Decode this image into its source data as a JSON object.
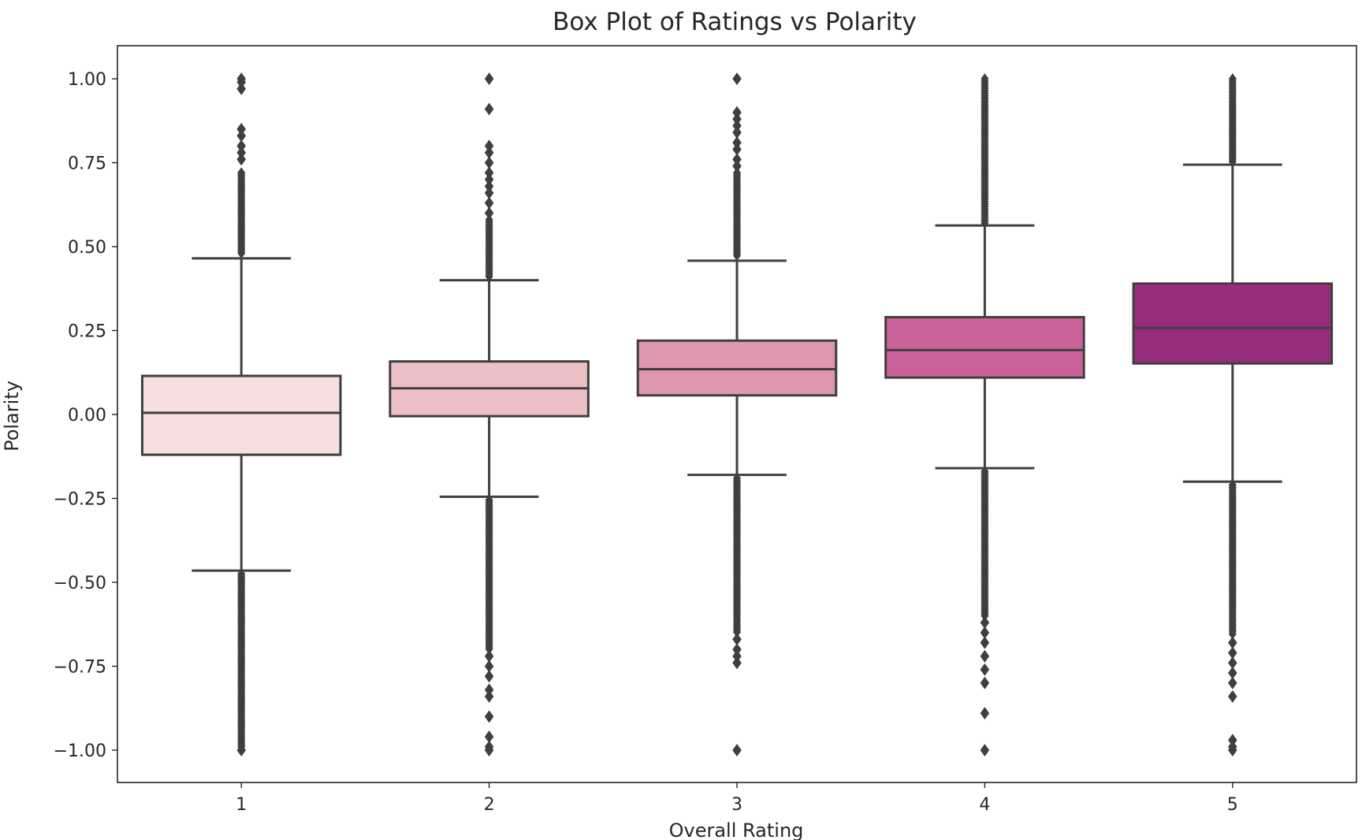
{
  "chart_data": {
    "type": "box",
    "title": "Box Plot of Ratings vs Polarity",
    "xlabel": "Overall Rating",
    "ylabel": "Polarity",
    "ylim": [
      -1.1,
      1.1
    ],
    "yticks": [
      1.0,
      0.75,
      0.5,
      0.25,
      0.0,
      -0.25,
      -0.5,
      -0.75,
      -1.0
    ],
    "ytick_labels": [
      "1.00",
      "0.75",
      "0.50",
      "0.25",
      "0.00",
      "−0.25",
      "−0.50",
      "−0.75",
      "−1.00"
    ],
    "categories": [
      "1",
      "2",
      "3",
      "4",
      "5"
    ],
    "grid": false,
    "legend": "none",
    "edge_color": "#3f3f3f",
    "boxes": [
      {
        "category": "1",
        "color": "#f7dfdf",
        "whisker_low": -0.465,
        "q1": -0.12,
        "median": 0.005,
        "q3": 0.115,
        "whisker_high": 0.465,
        "outliers_high_dense": [
          0.48,
          0.72
        ],
        "outliers_high_sparse": [
          0.76,
          0.78,
          0.8,
          0.83,
          0.85,
          0.97,
          0.99,
          1.0
        ],
        "outliers_low_dense": [
          -0.99,
          -0.475
        ],
        "outliers_low_sparse": [
          -1.0
        ]
      },
      {
        "category": "2",
        "color": "#ecc0c5",
        "whisker_low": -0.245,
        "q1": -0.005,
        "median": 0.078,
        "q3": 0.158,
        "whisker_high": 0.4,
        "outliers_high_dense": [
          0.41,
          0.58
        ],
        "outliers_high_sparse": [
          0.6,
          0.63,
          0.66,
          0.68,
          0.7,
          0.72,
          0.75,
          0.78,
          0.8,
          0.91,
          1.0
        ],
        "outliers_low_dense": [
          -0.7,
          -0.255
        ],
        "outliers_low_sparse": [
          -0.72,
          -0.75,
          -0.78,
          -0.82,
          -0.84,
          -0.9,
          -0.96,
          -0.99,
          -1.0
        ]
      },
      {
        "category": "3",
        "color": "#df97ad",
        "whisker_low": -0.18,
        "q1": 0.057,
        "median": 0.135,
        "q3": 0.22,
        "whisker_high": 0.458,
        "outliers_high_dense": [
          0.47,
          0.72
        ],
        "outliers_high_sparse": [
          0.74,
          0.76,
          0.79,
          0.81,
          0.84,
          0.86,
          0.88,
          0.9,
          1.0
        ],
        "outliers_low_dense": [
          -0.65,
          -0.19
        ],
        "outliers_low_sparse": [
          -0.67,
          -0.7,
          -0.72,
          -0.74,
          -1.0
        ]
      },
      {
        "category": "4",
        "color": "#c96298",
        "whisker_low": -0.16,
        "q1": 0.11,
        "median": 0.192,
        "q3": 0.29,
        "whisker_high": 0.563,
        "outliers_high_dense": [
          0.57,
          1.0
        ],
        "outliers_high_sparse": [],
        "outliers_low_dense": [
          -0.6,
          -0.17
        ],
        "outliers_low_sparse": [
          -0.62,
          -0.65,
          -0.68,
          -0.72,
          -0.76,
          -0.8,
          -0.89,
          -1.0
        ]
      },
      {
        "category": "5",
        "color": "#992d7d",
        "whisker_low": -0.2,
        "q1": 0.152,
        "median": 0.258,
        "q3": 0.39,
        "whisker_high": 0.744,
        "outliers_high_dense": [
          0.75,
          1.0
        ],
        "outliers_high_sparse": [],
        "outliers_low_dense": [
          -0.66,
          -0.21
        ],
        "outliers_low_sparse": [
          -0.68,
          -0.71,
          -0.74,
          -0.77,
          -0.8,
          -0.84,
          -0.97,
          -0.99,
          -1.0
        ]
      }
    ]
  }
}
